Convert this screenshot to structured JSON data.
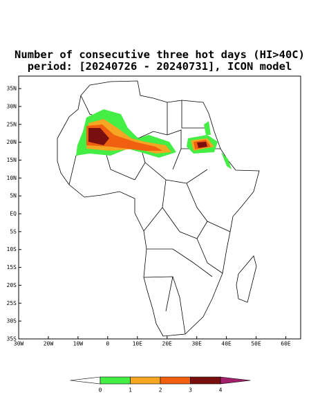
{
  "map": {
    "title": "Number of consecutive three hot days (HI>40C)",
    "subtitle": "period: [20240726 - 20240731], ICON model",
    "xlim": [
      -30,
      65
    ],
    "ylim": [
      -35,
      38.5
    ],
    "xticks": [
      {
        "value": -30,
        "label": "30W"
      },
      {
        "value": -20,
        "label": "20W"
      },
      {
        "value": -10,
        "label": "10W"
      },
      0,
      {
        "value": 10,
        "label": "10E"
      },
      {
        "value": 20,
        "label": "20E"
      },
      {
        "value": 30,
        "label": "30E"
      },
      {
        "value": 40,
        "label": "40E"
      },
      {
        "value": 50,
        "label": "50E"
      },
      {
        "value": 60,
        "label": "60E"
      }
    ],
    "yticks": [
      {
        "value": 35,
        "label": "35N"
      },
      {
        "value": 30,
        "label": "30N"
      },
      {
        "value": 25,
        "label": "25N"
      },
      {
        "value": 20,
        "label": "20N"
      },
      {
        "value": 15,
        "label": "15N"
      },
      {
        "value": 10,
        "label": "10N"
      },
      {
        "value": 5,
        "label": "5N"
      },
      {
        "value": 0,
        "label": "EQ"
      },
      {
        "value": -5,
        "label": "5S"
      },
      {
        "value": -10,
        "label": "10S"
      },
      {
        "value": -15,
        "label": "15S"
      },
      {
        "value": -20,
        "label": "20S"
      },
      {
        "value": -25,
        "label": "25S"
      },
      {
        "value": -30,
        "label": "30S"
      },
      {
        "value": -35,
        "label": "35S"
      }
    ],
    "colorbar": {
      "ticks": [
        0,
        1,
        2,
        3,
        4
      ],
      "colors": [
        "#ffffff",
        "#44ee44",
        "#f5a623",
        "#f06010",
        "#7a0f0f",
        "#a0206a"
      ]
    }
  }
}
